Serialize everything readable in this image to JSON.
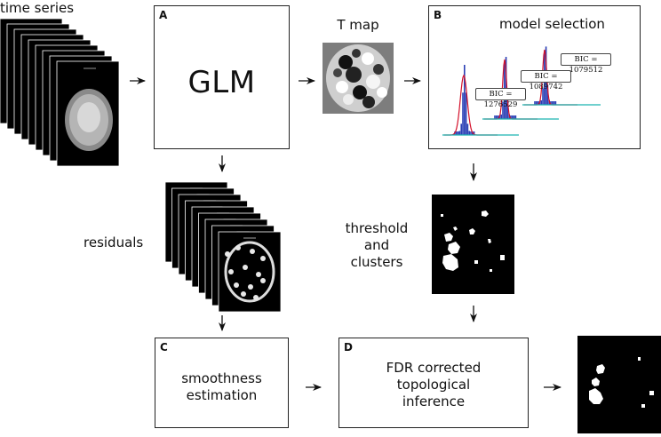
{
  "labels": {
    "time_series": "time series",
    "t_map": "T map",
    "model_selection": "model selection",
    "residuals": "residuals",
    "threshold_line1": "threshold",
    "threshold_line2": "and",
    "threshold_line3": "clusters",
    "smoothness_line1": "smoothness",
    "smoothness_line2": "estimation",
    "fdr_line1": "FDR corrected",
    "fdr_line2": "topological",
    "fdr_line3": "inference"
  },
  "panels": {
    "a": {
      "letter": "A",
      "text": "GLM"
    },
    "b": {
      "letter": "B"
    },
    "c": {
      "letter": "C"
    },
    "d": {
      "letter": "D"
    }
  },
  "bic": {
    "first": "BIC = 1276529",
    "second": "BIC = 1089742",
    "third": "BIC = 1079512"
  },
  "colors": {
    "histogram": "#2a3fb5",
    "fit_curve": "#d4112b",
    "fit_curve_alt": "#1bb3b0",
    "frame_stroke": "#222222"
  }
}
